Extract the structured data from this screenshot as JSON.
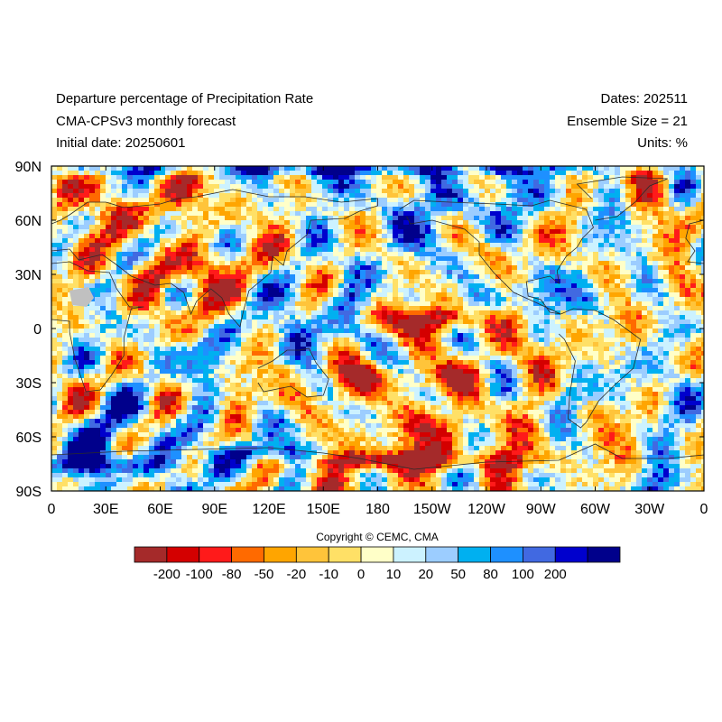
{
  "header": {
    "title_line1": "Departure percentage of Precipitation Rate",
    "title_line2": "CMA-CPSv3 monthly forecast",
    "title_line3": "Initial date: 20250601",
    "dates": "Dates: 202511",
    "ensemble": "Ensemble Size = 21",
    "units": "Units: %"
  },
  "map": {
    "lat_labels": [
      "90N",
      "60N",
      "30N",
      "0",
      "30S",
      "60S",
      "90S"
    ],
    "lon_labels": [
      "0",
      "30E",
      "60E",
      "90E",
      "120E",
      "150E",
      "180",
      "150W",
      "120W",
      "90W",
      "60W",
      "30W",
      "0"
    ],
    "missing_color": "#c0c0c0",
    "coastline_color": "#2a2a2a"
  },
  "copyright": "Copyright © CEMC, CMA",
  "colorbar": {
    "colors": [
      "#a52a2a",
      "#d40000",
      "#ff1a1a",
      "#ff6a00",
      "#ffa500",
      "#ffc43a",
      "#ffe066",
      "#ffffc8",
      "#ccf2ff",
      "#9ccdff",
      "#00b0f0",
      "#1e90ff",
      "#4169e1",
      "#0000cd",
      "#00008b"
    ],
    "tick_labels": [
      "-200",
      "-100",
      "-80",
      "-50",
      "-20",
      "-10",
      "0",
      "10",
      "20",
      "50",
      "80",
      "100",
      "200"
    ]
  }
}
